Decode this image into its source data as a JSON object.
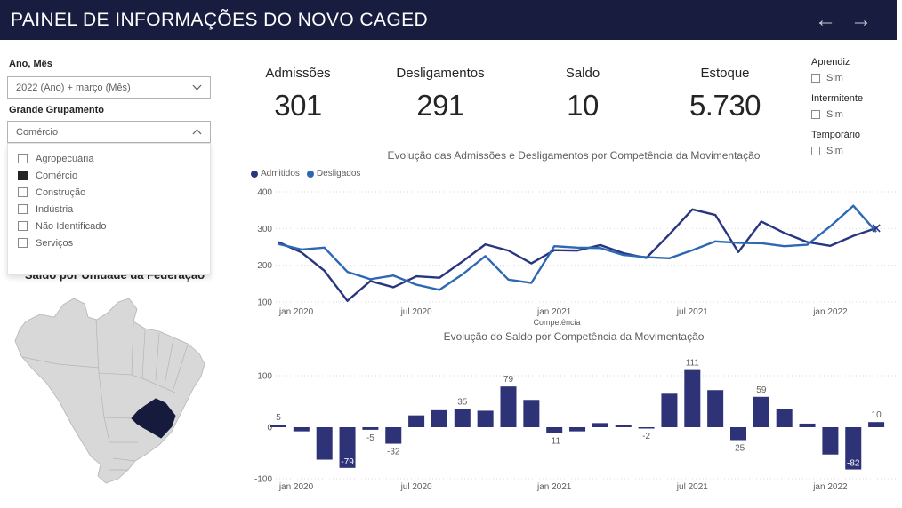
{
  "header": {
    "title": "PAINEL DE INFORMAÇÕES DO NOVO CAGED",
    "back_arrow": "←",
    "forward_arrow": "→"
  },
  "filters": {
    "ano_mes": {
      "label": "Ano, Mês",
      "value": "2022 (Ano) + março (Mês)"
    },
    "grande_grupamento": {
      "label": "Grande Grupamento",
      "value": "Comércio",
      "options": [
        {
          "label": "Agropecuária",
          "checked": false
        },
        {
          "label": "Comércio",
          "checked": true
        },
        {
          "label": "Construção",
          "checked": false
        },
        {
          "label": "Indústria",
          "checked": false
        },
        {
          "label": "Não Identificado",
          "checked": false
        },
        {
          "label": "Serviços",
          "checked": false
        }
      ]
    },
    "toggles": [
      {
        "label": "Aprendiz",
        "option": "Sim",
        "checked": false
      },
      {
        "label": "Intermitente",
        "option": "Sim",
        "checked": false
      },
      {
        "label": "Temporário",
        "option": "Sim",
        "checked": false
      }
    ]
  },
  "kpis": [
    {
      "label": "Admissões",
      "value": "301"
    },
    {
      "label": "Desligamentos",
      "value": "291"
    },
    {
      "label": "Saldo",
      "value": "10"
    },
    {
      "label": "Estoque",
      "value": "5.730"
    }
  ],
  "map": {
    "title": "Saldo por Unidade da Federação",
    "highlighted_state": "Minas Gerais",
    "state_fill": "#D8D8D8",
    "state_border": "#B5B5B5",
    "highlight_fill": "#161B3D"
  },
  "chart_data": [
    {
      "type": "line",
      "title": "Evolução das Admissões e Desligamentos por Competência da Movimentação",
      "xlabel": "Competência",
      "x_start": "jan 2020",
      "x_interval": "monthly",
      "n_points": 27,
      "x_ticks": [
        "jan 2020",
        "jul 2020",
        "jan 2021",
        "jul 2021",
        "jan 2022"
      ],
      "x_tick_indices": [
        0,
        6,
        12,
        18,
        24
      ],
      "ylim": [
        100,
        400
      ],
      "y_ticks": [
        100,
        200,
        300,
        400
      ],
      "grid": "dotted",
      "legend_position": "top-left",
      "series": [
        {
          "name": "Admitidos",
          "color": "#2A3580",
          "values": [
            263,
            235,
            185,
            103,
            157,
            140,
            170,
            166,
            210,
            257,
            240,
            205,
            241,
            240,
            255,
            233,
            220,
            284,
            352,
            337,
            236,
            319,
            288,
            263,
            253,
            280,
            301
          ]
        },
        {
          "name": "Desligados",
          "color": "#2D68B2",
          "values": [
            258,
            243,
            248,
            182,
            162,
            172,
            147,
            133,
            175,
            225,
            161,
            152,
            252,
            248,
            247,
            228,
            222,
            219,
            241,
            265,
            261,
            260,
            252,
            256,
            306,
            362,
            291
          ]
        }
      ]
    },
    {
      "type": "bar",
      "title": "Evolução do Saldo por Competência da Movimentação",
      "x_start": "jan 2020",
      "x_interval": "monthly",
      "x_ticks": [
        "jan 2020",
        "jul 2020",
        "jan 2021",
        "jul 2021",
        "jan 2022"
      ],
      "x_tick_indices": [
        0,
        6,
        12,
        18,
        24
      ],
      "ylim": [
        -100,
        100
      ],
      "y_ticks": [
        -100,
        0,
        100
      ],
      "bar_color": "#2E3277",
      "values": [
        5,
        -8,
        -63,
        -79,
        -5,
        -32,
        23,
        33,
        35,
        32,
        79,
        53,
        -11,
        -8,
        8,
        5,
        -2,
        65,
        111,
        72,
        -25,
        59,
        36,
        7,
        -53,
        -82,
        10
      ],
      "data_labels": {
        "0": "5",
        "3": "-79",
        "4": "-5",
        "5": "-32",
        "8": "35",
        "10": "79",
        "12": "-11",
        "16": "-2",
        "18": "111",
        "20": "-25",
        "21": "59",
        "25": "-82",
        "26": "10"
      },
      "inside_label_indices": [
        3,
        25
      ]
    }
  ]
}
